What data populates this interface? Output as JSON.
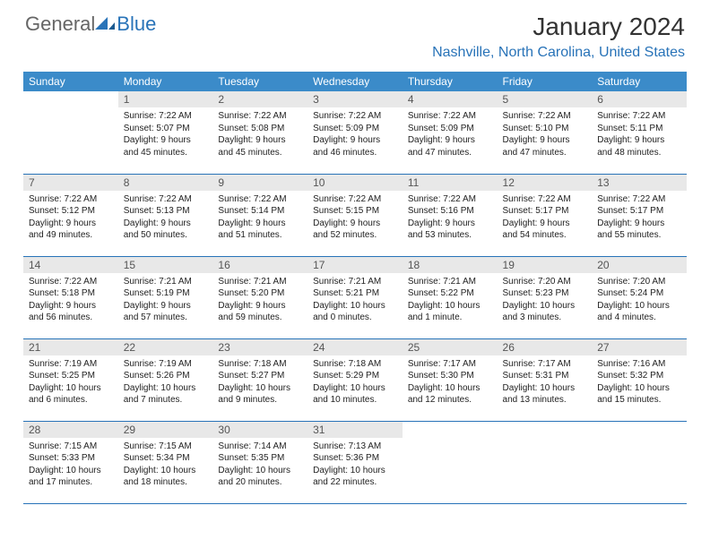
{
  "logo": {
    "general": "General",
    "blue": "Blue"
  },
  "header": {
    "month_title": "January 2024",
    "location": "Nashville, North Carolina, United States"
  },
  "colors": {
    "header_bg": "#3b8bc9",
    "header_text": "#ffffff",
    "daynum_bg": "#e8e8e8",
    "daynum_text": "#555555",
    "border": "#2873b8",
    "location_text": "#2873b8",
    "body_text": "#222222"
  },
  "day_names": [
    "Sunday",
    "Monday",
    "Tuesday",
    "Wednesday",
    "Thursday",
    "Friday",
    "Saturday"
  ],
  "weeks": [
    [
      null,
      {
        "n": "1",
        "sr": "7:22 AM",
        "ss": "5:07 PM",
        "dl": "9 hours and 45 minutes."
      },
      {
        "n": "2",
        "sr": "7:22 AM",
        "ss": "5:08 PM",
        "dl": "9 hours and 45 minutes."
      },
      {
        "n": "3",
        "sr": "7:22 AM",
        "ss": "5:09 PM",
        "dl": "9 hours and 46 minutes."
      },
      {
        "n": "4",
        "sr": "7:22 AM",
        "ss": "5:09 PM",
        "dl": "9 hours and 47 minutes."
      },
      {
        "n": "5",
        "sr": "7:22 AM",
        "ss": "5:10 PM",
        "dl": "9 hours and 47 minutes."
      },
      {
        "n": "6",
        "sr": "7:22 AM",
        "ss": "5:11 PM",
        "dl": "9 hours and 48 minutes."
      }
    ],
    [
      {
        "n": "7",
        "sr": "7:22 AM",
        "ss": "5:12 PM",
        "dl": "9 hours and 49 minutes."
      },
      {
        "n": "8",
        "sr": "7:22 AM",
        "ss": "5:13 PM",
        "dl": "9 hours and 50 minutes."
      },
      {
        "n": "9",
        "sr": "7:22 AM",
        "ss": "5:14 PM",
        "dl": "9 hours and 51 minutes."
      },
      {
        "n": "10",
        "sr": "7:22 AM",
        "ss": "5:15 PM",
        "dl": "9 hours and 52 minutes."
      },
      {
        "n": "11",
        "sr": "7:22 AM",
        "ss": "5:16 PM",
        "dl": "9 hours and 53 minutes."
      },
      {
        "n": "12",
        "sr": "7:22 AM",
        "ss": "5:17 PM",
        "dl": "9 hours and 54 minutes."
      },
      {
        "n": "13",
        "sr": "7:22 AM",
        "ss": "5:17 PM",
        "dl": "9 hours and 55 minutes."
      }
    ],
    [
      {
        "n": "14",
        "sr": "7:22 AM",
        "ss": "5:18 PM",
        "dl": "9 hours and 56 minutes."
      },
      {
        "n": "15",
        "sr": "7:21 AM",
        "ss": "5:19 PM",
        "dl": "9 hours and 57 minutes."
      },
      {
        "n": "16",
        "sr": "7:21 AM",
        "ss": "5:20 PM",
        "dl": "9 hours and 59 minutes."
      },
      {
        "n": "17",
        "sr": "7:21 AM",
        "ss": "5:21 PM",
        "dl": "10 hours and 0 minutes."
      },
      {
        "n": "18",
        "sr": "7:21 AM",
        "ss": "5:22 PM",
        "dl": "10 hours and 1 minute."
      },
      {
        "n": "19",
        "sr": "7:20 AM",
        "ss": "5:23 PM",
        "dl": "10 hours and 3 minutes."
      },
      {
        "n": "20",
        "sr": "7:20 AM",
        "ss": "5:24 PM",
        "dl": "10 hours and 4 minutes."
      }
    ],
    [
      {
        "n": "21",
        "sr": "7:19 AM",
        "ss": "5:25 PM",
        "dl": "10 hours and 6 minutes."
      },
      {
        "n": "22",
        "sr": "7:19 AM",
        "ss": "5:26 PM",
        "dl": "10 hours and 7 minutes."
      },
      {
        "n": "23",
        "sr": "7:18 AM",
        "ss": "5:27 PM",
        "dl": "10 hours and 9 minutes."
      },
      {
        "n": "24",
        "sr": "7:18 AM",
        "ss": "5:29 PM",
        "dl": "10 hours and 10 minutes."
      },
      {
        "n": "25",
        "sr": "7:17 AM",
        "ss": "5:30 PM",
        "dl": "10 hours and 12 minutes."
      },
      {
        "n": "26",
        "sr": "7:17 AM",
        "ss": "5:31 PM",
        "dl": "10 hours and 13 minutes."
      },
      {
        "n": "27",
        "sr": "7:16 AM",
        "ss": "5:32 PM",
        "dl": "10 hours and 15 minutes."
      }
    ],
    [
      {
        "n": "28",
        "sr": "7:15 AM",
        "ss": "5:33 PM",
        "dl": "10 hours and 17 minutes."
      },
      {
        "n": "29",
        "sr": "7:15 AM",
        "ss": "5:34 PM",
        "dl": "10 hours and 18 minutes."
      },
      {
        "n": "30",
        "sr": "7:14 AM",
        "ss": "5:35 PM",
        "dl": "10 hours and 20 minutes."
      },
      {
        "n": "31",
        "sr": "7:13 AM",
        "ss": "5:36 PM",
        "dl": "10 hours and 22 minutes."
      },
      null,
      null,
      null
    ]
  ],
  "labels": {
    "sunrise_prefix": "Sunrise: ",
    "sunset_prefix": "Sunset: ",
    "daylight_prefix": "Daylight: "
  }
}
